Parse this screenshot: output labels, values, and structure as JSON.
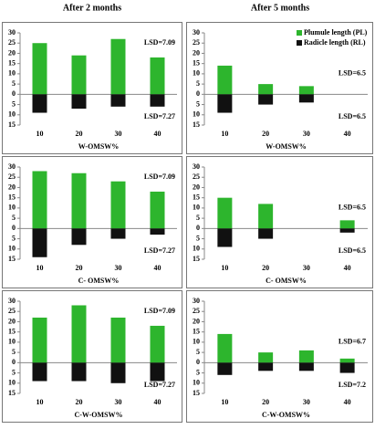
{
  "column_titles": [
    "After 2 months",
    "After 5 months"
  ],
  "chart_data": [
    {
      "type": "bar",
      "xlabel": "W-OMSW%",
      "categories": [
        "10",
        "20",
        "30",
        "40"
      ],
      "series": [
        {
          "color": "#2db52d",
          "values": [
            25,
            19,
            27,
            18
          ]
        },
        {
          "color": "#111111",
          "values": [
            -9,
            -7,
            -6,
            -6
          ]
        }
      ],
      "annotations": [
        "LSD=7.09",
        "LSD=7.27"
      ],
      "ylim": [
        -15,
        30
      ],
      "yticks": [
        30,
        25,
        20,
        15,
        10,
        5,
        0,
        {
          "value": -5,
          "label": "5"
        },
        {
          "value": -10,
          "label": "10"
        },
        {
          "value": -15,
          "label": "15"
        }
      ]
    },
    {
      "type": "bar",
      "xlabel": "W-OMSW%",
      "categories": [
        "10",
        "20",
        "30",
        "40"
      ],
      "series": [
        {
          "name": "Plumule length (PL)",
          "color": "#2db52d",
          "values": [
            14,
            5,
            4,
            0
          ]
        },
        {
          "name": "Radicle length (RL)",
          "color": "#111111",
          "values": [
            -9,
            -5,
            -4,
            0
          ]
        }
      ],
      "annotations": [
        "LSD=6.5",
        "LSD=6.5"
      ],
      "ylim": [
        -15,
        30
      ],
      "yticks": [
        30,
        25,
        20,
        15,
        10,
        5,
        0,
        {
          "value": -5,
          "label": "5"
        },
        {
          "value": -10,
          "label": "10"
        },
        {
          "value": -15,
          "label": "15"
        }
      ]
    },
    {
      "type": "bar",
      "xlabel": "C- OMSW%",
      "categories": [
        "10",
        "20",
        "30",
        "40"
      ],
      "series": [
        {
          "color": "#2db52d",
          "values": [
            28,
            27,
            23,
            18
          ]
        },
        {
          "color": "#111111",
          "values": [
            -14,
            -8,
            -5,
            -3
          ]
        }
      ],
      "annotations": [
        "LSD=7.09",
        "LSD=7.27"
      ],
      "ylim": [
        -15,
        30
      ],
      "yticks": [
        30,
        25,
        20,
        15,
        10,
        5,
        0,
        {
          "value": -5,
          "label": "5"
        },
        {
          "value": -10,
          "label": "10"
        },
        {
          "value": -15,
          "label": "15"
        }
      ]
    },
    {
      "type": "bar",
      "xlabel": "C- OMSW%",
      "categories": [
        "10",
        "20",
        "30",
        "40"
      ],
      "series": [
        {
          "color": "#2db52d",
          "values": [
            15,
            12,
            0,
            4
          ]
        },
        {
          "color": "#111111",
          "values": [
            -9,
            -5,
            0,
            -2
          ]
        }
      ],
      "annotations": [
        "LSD=6.5",
        "LSD=6.5"
      ],
      "ylim": [
        -15,
        30
      ],
      "yticks": [
        30,
        25,
        20,
        15,
        10,
        5,
        0,
        {
          "value": -5,
          "label": "5"
        },
        {
          "value": -10,
          "label": "10"
        },
        {
          "value": -15,
          "label": "15"
        }
      ]
    },
    {
      "type": "bar",
      "xlabel": "C-W-OMSW%",
      "categories": [
        "10",
        "20",
        "30",
        "40"
      ],
      "series": [
        {
          "color": "#2db52d",
          "values": [
            22,
            28,
            22,
            18
          ]
        },
        {
          "color": "#111111",
          "values": [
            -9,
            -9,
            -10,
            -9
          ]
        }
      ],
      "annotations": [
        "LSD=7.09",
        "LSD=7.27"
      ],
      "ylim": [
        -15,
        30
      ],
      "yticks": [
        30,
        25,
        20,
        15,
        10,
        5,
        0,
        {
          "value": -5,
          "label": "5"
        },
        {
          "value": -10,
          "label": "10"
        },
        {
          "value": -15,
          "label": "15"
        }
      ]
    },
    {
      "type": "bar",
      "xlabel": "C-W-OMSW%",
      "categories": [
        "10",
        "20",
        "30",
        "40"
      ],
      "series": [
        {
          "color": "#2db52d",
          "values": [
            14,
            5,
            6,
            2
          ]
        },
        {
          "color": "#111111",
          "values": [
            -6,
            -4,
            -4,
            -5
          ]
        }
      ],
      "annotations": [
        "LSD=6.7",
        "LSD=7.2"
      ],
      "ylim": [
        -15,
        30
      ],
      "yticks": [
        30,
        25,
        20,
        15,
        10,
        5,
        0,
        {
          "value": -5,
          "label": "5"
        },
        {
          "value": -10,
          "label": "10"
        },
        {
          "value": -15,
          "label": "15"
        }
      ]
    }
  ]
}
